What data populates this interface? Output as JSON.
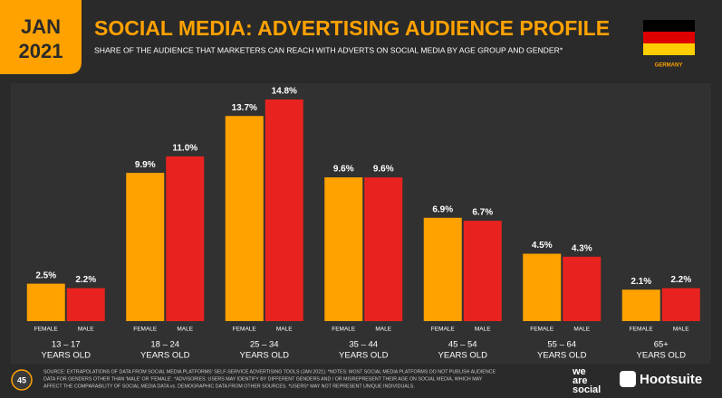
{
  "header": {
    "date_line1": "JAN",
    "date_line2": "2021",
    "country": "GERMANY"
  },
  "chart_data": {
    "type": "bar",
    "title": "SOCIAL MEDIA: ADVERTISING AUDIENCE PROFILE",
    "subtitle": "SHARE OF THE AUDIENCE THAT MARKETERS CAN REACH WITH ADVERTS ON SOCIAL MEDIA BY AGE GROUP AND GENDER*",
    "categories": [
      "13 – 17",
      "18 – 24",
      "25 – 34",
      "35 – 44",
      "45 – 54",
      "55 – 64",
      "65+"
    ],
    "category_unit": "YEARS OLD",
    "series": [
      {
        "name": "FEMALE",
        "color": "#ffa200",
        "values": [
          2.5,
          9.9,
          13.7,
          9.6,
          6.9,
          4.5,
          2.1
        ],
        "value_labels": [
          "2.5%",
          "9.9%",
          "13.7%",
          "9.6%",
          "6.9%",
          "4.5%",
          "2.1%"
        ]
      },
      {
        "name": "MALE",
        "color": "#e8231f",
        "values": [
          2.2,
          11.0,
          14.8,
          9.6,
          6.7,
          4.3,
          2.2
        ],
        "value_labels": [
          "2.2%",
          "11.0%",
          "14.8%",
          "9.6%",
          "6.7%",
          "4.3%",
          "2.2%"
        ]
      }
    ]
  },
  "footer": {
    "page": "45",
    "source_lines": [
      "SOURCE: EXTRAPOLATIONS OF DATA FROM SOCIAL MEDIA PLATFORMS' SELF-SERVICE ADVERTISING TOOLS (JAN 2021). *NOTES: MOST SOCIAL MEDIA PLATFORMS DO NOT PUBLISH AUDIENCE",
      "DATA FOR GENDERS OTHER THAN 'MALE' OR 'FEMALE'. *ADVISORIES: USERS MAY IDENTIFY BY DIFFERENT GENDERS AND / OR MISREPRESENT THEIR AGE ON SOCIAL MEDIA, WHICH MAY",
      "AFFECT THE COMPARABILITY OF SOCIAL MEDIA DATA vs. DEMOGRAPHIC DATA FROM OTHER SOURCES. *USERS* MAY NOT REPRESENT UNIQUE INDIVIDUALS."
    ],
    "brand1": [
      "we",
      "are",
      "social"
    ],
    "brand2": "Hootsuite"
  }
}
